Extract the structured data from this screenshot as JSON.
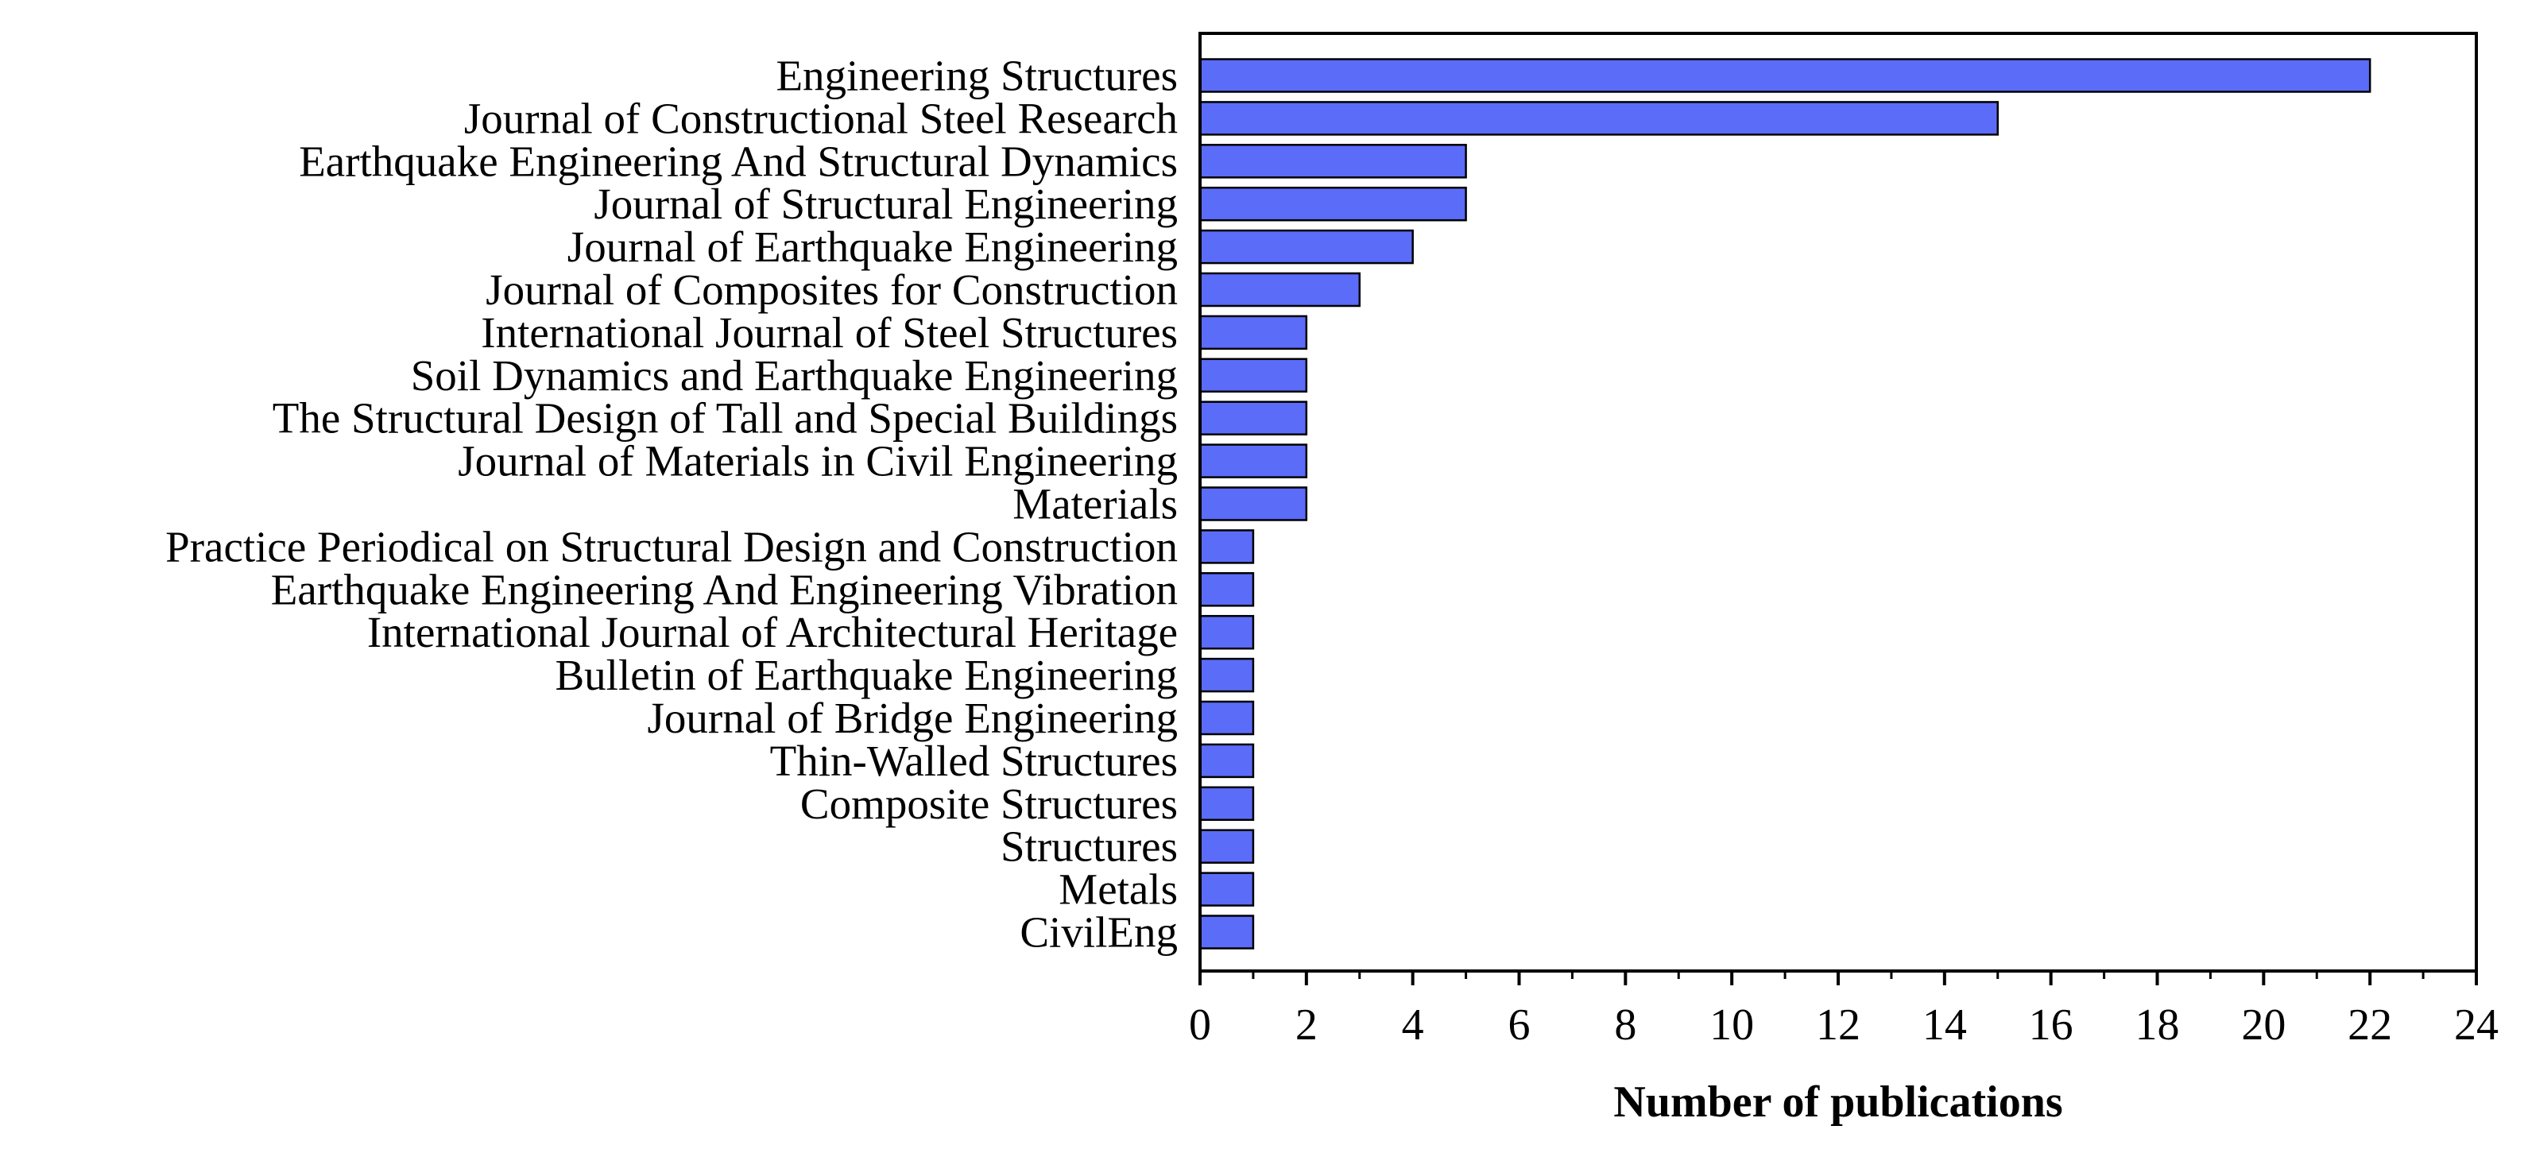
{
  "chart_data": {
    "type": "bar",
    "orientation": "horizontal",
    "title": "",
    "xlabel": "Number of publications",
    "ylabel": "",
    "xlim": [
      0,
      24
    ],
    "xticks": [
      0,
      2,
      4,
      6,
      8,
      10,
      12,
      14,
      16,
      18,
      20,
      22,
      24
    ],
    "grid": false,
    "bar_color": "#5b6cf9",
    "bar_edge_color": "#000000",
    "categories": [
      "Engineering Structures",
      "Journal of Constructional Steel Research",
      "Earthquake Engineering And Structural Dynamics",
      "Journal of Structural Engineering",
      "Journal of Earthquake Engineering",
      "Journal of Composites for Construction",
      "International Journal of Steel Structures",
      "Soil Dynamics and Earthquake Engineering",
      "The Structural Design of Tall and Special Buildings",
      "Journal of Materials in Civil Engineering",
      "Materials",
      "Practice Periodical on Structural Design and Construction",
      "Earthquake Engineering And Engineering Vibration",
      "International Journal of Architectural Heritage",
      "Bulletin of Earthquake Engineering",
      "Journal of Bridge Engineering",
      "Thin-Walled Structures",
      "Composite Structures",
      "Structures",
      "Metals",
      "CivilEng"
    ],
    "values": [
      22,
      15,
      5,
      5,
      4,
      3,
      2,
      2,
      2,
      2,
      2,
      1,
      1,
      1,
      1,
      1,
      1,
      1,
      1,
      1,
      1
    ]
  }
}
